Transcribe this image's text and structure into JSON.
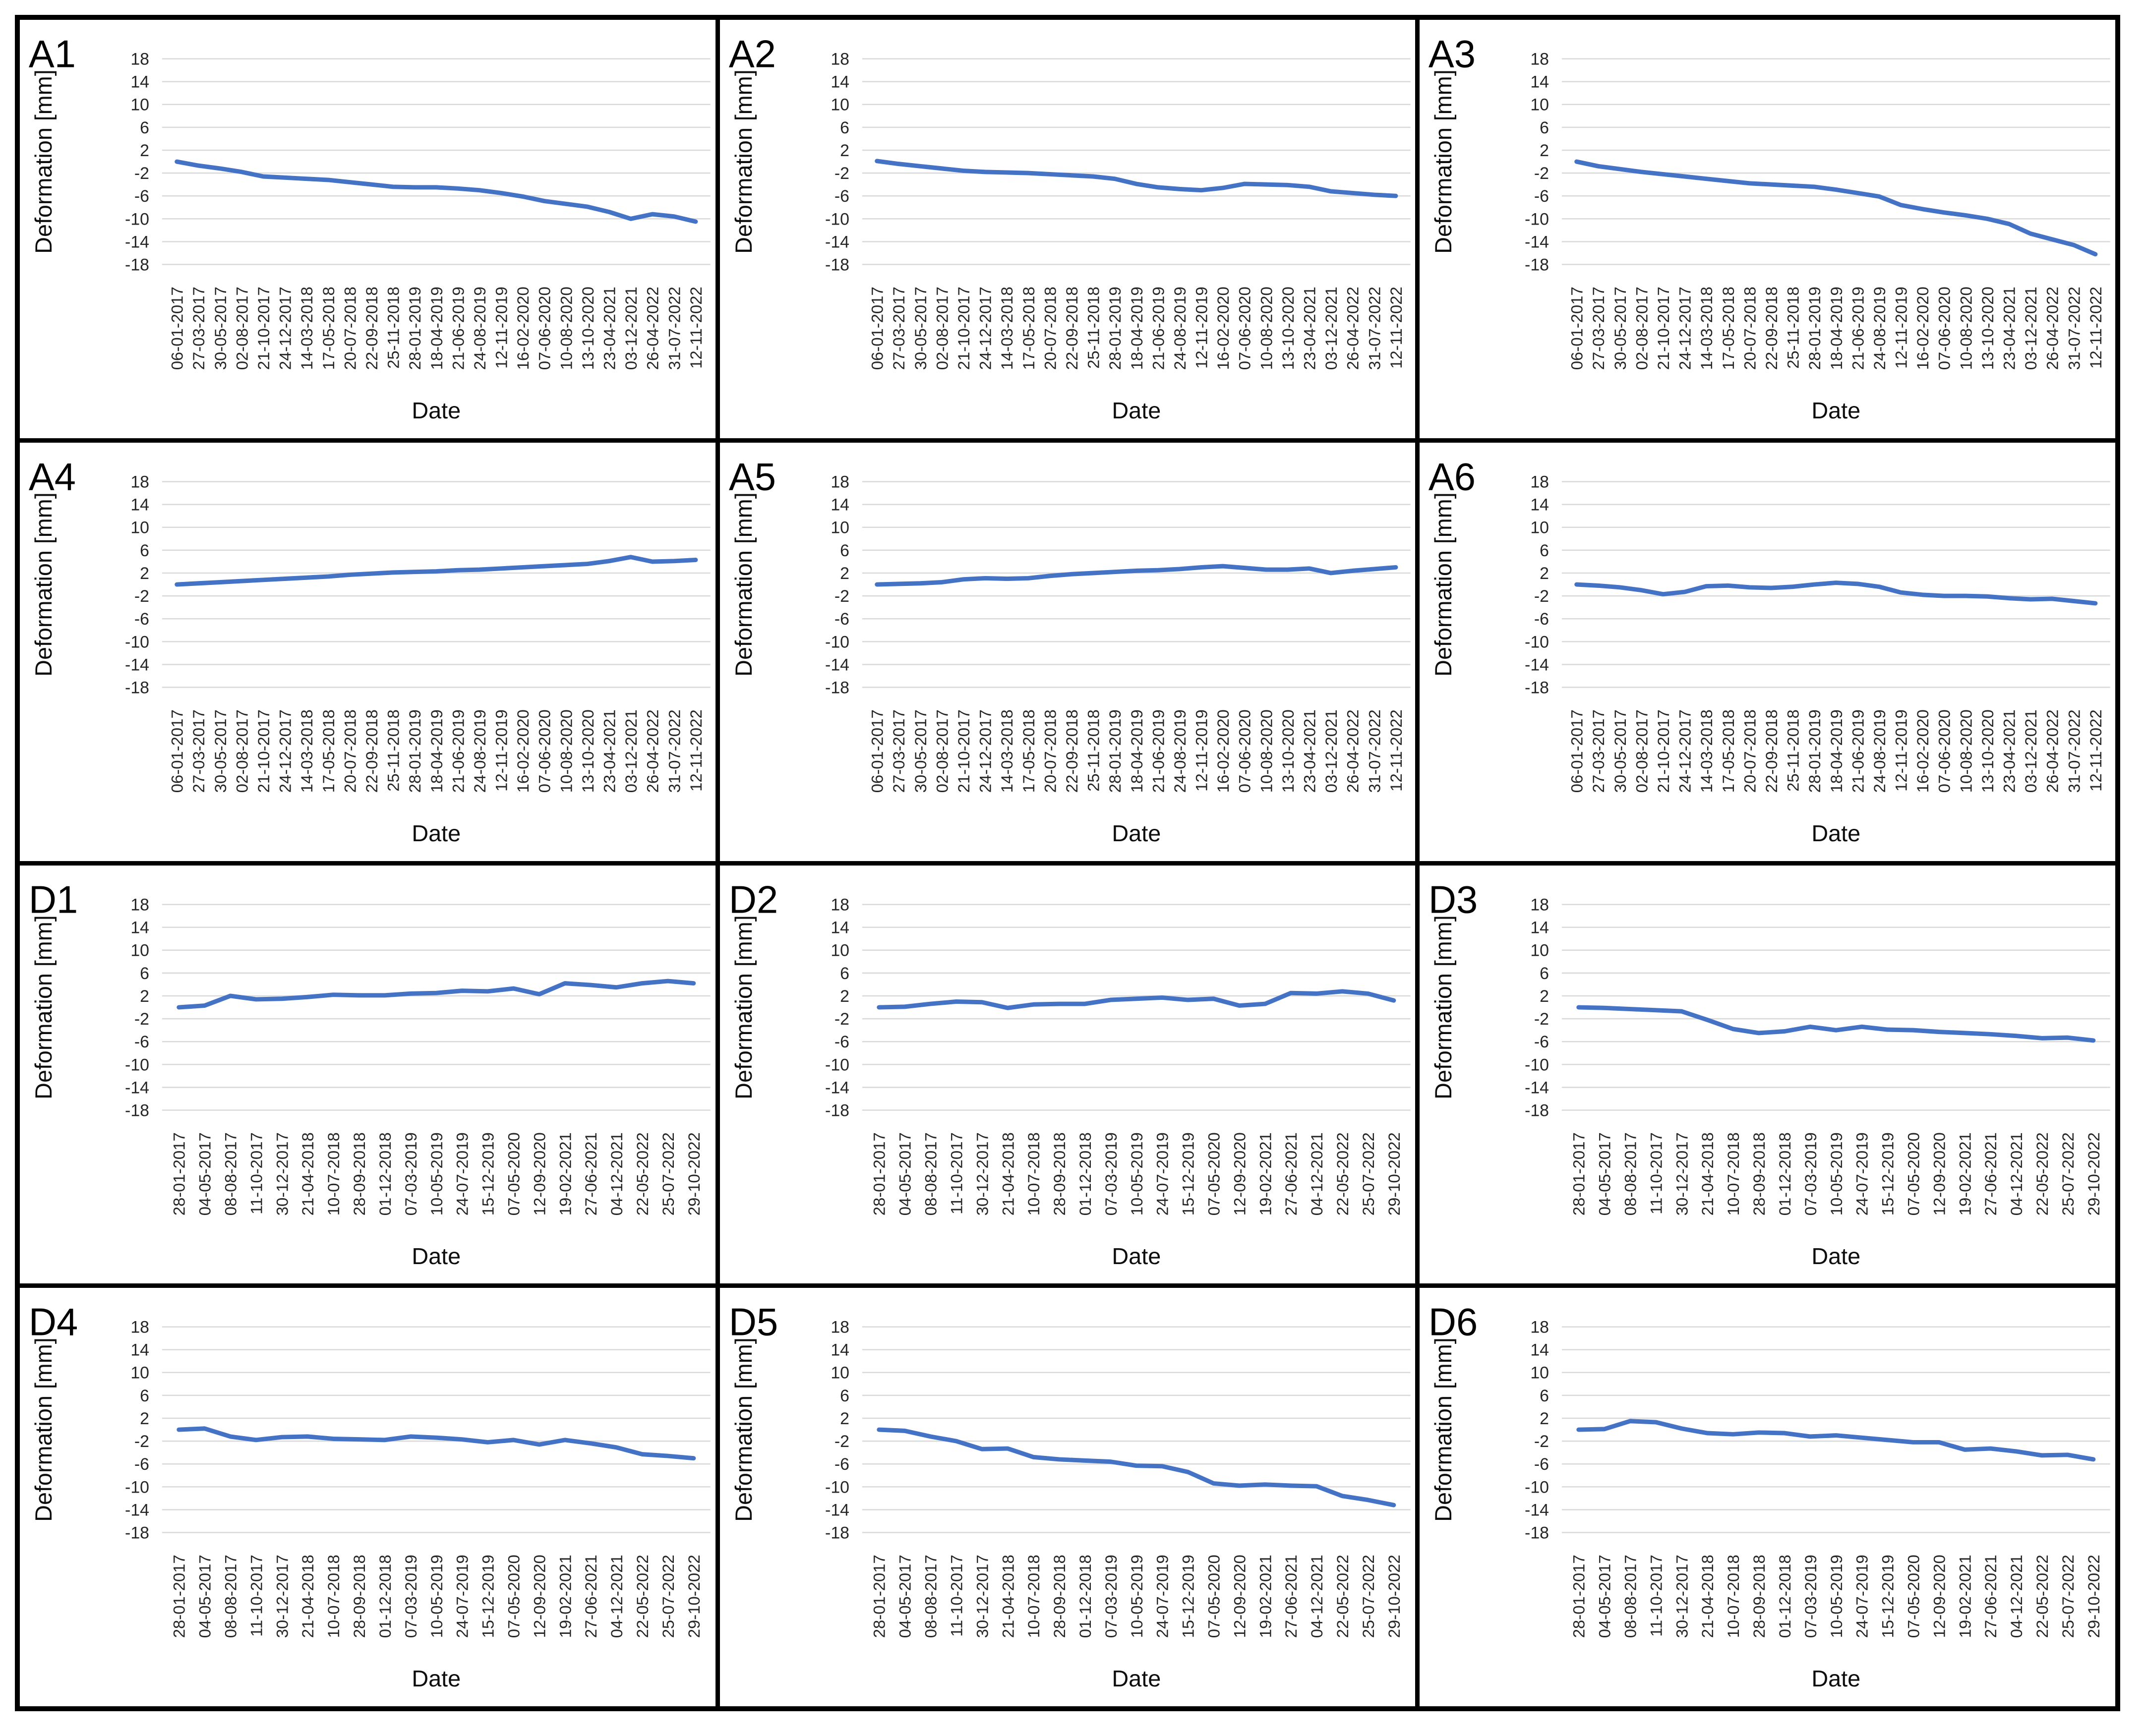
{
  "figure": {
    "line_color": "#4472C4",
    "grid_color": "#D9D9D9",
    "tick_text_color": "#262626",
    "border_color": "#000000",
    "background_color": "#FFFFFF"
  },
  "chart_data": {
    "type": "line",
    "title": "",
    "xlabel": "Date",
    "ylabel": "Deformation [mm]",
    "ylim": [
      -20.5,
      20.5
    ],
    "yticks": [
      18,
      14,
      10,
      6,
      2,
      -2,
      -6,
      -10,
      -14,
      -18
    ],
    "grid": true,
    "legend": false,
    "categories_A": [
      "06-01-2017",
      "27-03-2017",
      "30-05-2017",
      "02-08-2017",
      "21-10-2017",
      "24-12-2017",
      "14-03-2018",
      "17-05-2018",
      "20-07-2018",
      "22-09-2018",
      "25-11-2018",
      "28-01-2019",
      "18-04-2019",
      "21-06-2019",
      "24-08-2019",
      "12-11-2019",
      "16-02-2020",
      "07-06-2020",
      "10-08-2020",
      "13-10-2020",
      "23-04-2021",
      "03-12-2021",
      "26-04-2022",
      "31-07-2022",
      "12-11-2022"
    ],
    "categories_D": [
      "28-01-2017",
      "04-05-2017",
      "08-08-2017",
      "11-10-2017",
      "30-12-2017",
      "21-04-2018",
      "10-07-2018",
      "28-09-2018",
      "01-12-2018",
      "07-03-2019",
      "10-05-2019",
      "24-07-2019",
      "15-12-2019",
      "07-05-2020",
      "12-09-2020",
      "19-02-2021",
      "27-06-2021",
      "04-12-2021",
      "22-05-2022",
      "25-07-2022",
      "29-10-2022"
    ],
    "panels": [
      {
        "label": "A1",
        "category_set": "A",
        "values": [
          0,
          -0.7,
          -1.2,
          -1.8,
          -2.6,
          -2.8,
          -3.0,
          -3.2,
          -3.6,
          -4.0,
          -4.4,
          -4.5,
          -4.5,
          -4.7,
          -5.0,
          -5.5,
          -6.1,
          -6.9,
          -7.4,
          -7.9,
          -8.8,
          -10.0,
          -9.2,
          -9.6,
          -10.5
        ]
      },
      {
        "label": "A2",
        "category_set": "A",
        "values": [
          0.1,
          -0.4,
          -0.8,
          -1.2,
          -1.6,
          -1.8,
          -1.9,
          -2.0,
          -2.2,
          -2.4,
          -2.6,
          -3.0,
          -3.9,
          -4.5,
          -4.8,
          -5.0,
          -4.6,
          -3.9,
          -4.0,
          -4.1,
          -4.4,
          -5.2,
          -5.5,
          -5.8,
          -6.0
        ]
      },
      {
        "label": "A3",
        "category_set": "A",
        "values": [
          0,
          -0.8,
          -1.3,
          -1.8,
          -2.2,
          -2.6,
          -3.0,
          -3.4,
          -3.8,
          -4.0,
          -4.2,
          -4.4,
          -4.9,
          -5.5,
          -6.1,
          -7.6,
          -8.3,
          -8.9,
          -9.4,
          -10.0,
          -10.9,
          -12.6,
          -13.6,
          -14.6,
          -16.2
        ]
      },
      {
        "label": "A4",
        "category_set": "A",
        "values": [
          0,
          0.2,
          0.4,
          0.6,
          0.8,
          1.0,
          1.2,
          1.4,
          1.7,
          1.9,
          2.1,
          2.2,
          2.3,
          2.5,
          2.6,
          2.8,
          3.0,
          3.2,
          3.4,
          3.6,
          4.1,
          4.8,
          4.0,
          4.1,
          4.3
        ]
      },
      {
        "label": "A5",
        "category_set": "A",
        "values": [
          0,
          0.1,
          0.2,
          0.4,
          0.9,
          1.1,
          1.0,
          1.1,
          1.5,
          1.8,
          2.0,
          2.2,
          2.4,
          2.5,
          2.7,
          3.0,
          3.2,
          2.9,
          2.6,
          2.6,
          2.8,
          2.0,
          2.4,
          2.7,
          3.0
        ]
      },
      {
        "label": "A6",
        "category_set": "A",
        "values": [
          0,
          -0.2,
          -0.5,
          -1.0,
          -1.7,
          -1.3,
          -0.3,
          -0.2,
          -0.5,
          -0.6,
          -0.4,
          0.0,
          0.3,
          0.1,
          -0.4,
          -1.4,
          -1.8,
          -2.0,
          -2.0,
          -2.1,
          -2.4,
          -2.6,
          -2.5,
          -2.9,
          -3.3
        ]
      },
      {
        "label": "D1",
        "category_set": "D",
        "values": [
          0,
          0.3,
          2.0,
          1.4,
          1.5,
          1.8,
          2.2,
          2.1,
          2.1,
          2.4,
          2.5,
          2.9,
          2.8,
          3.3,
          2.3,
          4.2,
          3.9,
          3.5,
          4.2,
          4.6,
          4.2
        ]
      },
      {
        "label": "D2",
        "category_set": "D",
        "values": [
          0,
          0.1,
          0.6,
          1.0,
          0.9,
          -0.1,
          0.5,
          0.6,
          0.6,
          1.3,
          1.5,
          1.7,
          1.3,
          1.5,
          0.3,
          0.6,
          2.5,
          2.4,
          2.8,
          2.4,
          1.2
        ]
      },
      {
        "label": "D3",
        "category_set": "D",
        "values": [
          0,
          -0.1,
          -0.3,
          -0.5,
          -0.7,
          -2.2,
          -3.8,
          -4.5,
          -4.2,
          -3.4,
          -4.0,
          -3.4,
          -3.9,
          -4.0,
          -4.3,
          -4.5,
          -4.7,
          -5.0,
          -5.4,
          -5.3,
          -5.8
        ]
      },
      {
        "label": "D4",
        "category_set": "D",
        "values": [
          0,
          0.2,
          -1.2,
          -1.8,
          -1.3,
          -1.2,
          -1.6,
          -1.7,
          -1.8,
          -1.2,
          -1.4,
          -1.7,
          -2.2,
          -1.8,
          -2.6,
          -1.8,
          -2.4,
          -3.1,
          -4.3,
          -4.6,
          -5.0
        ]
      },
      {
        "label": "D5",
        "category_set": "D",
        "values": [
          0,
          -0.2,
          -1.2,
          -2.0,
          -3.4,
          -3.3,
          -4.8,
          -5.2,
          -5.4,
          -5.6,
          -6.3,
          -6.4,
          -7.4,
          -9.4,
          -9.8,
          -9.6,
          -9.8,
          -9.9,
          -11.6,
          -12.3,
          -13.2
        ]
      },
      {
        "label": "D6",
        "category_set": "D",
        "values": [
          0,
          0.1,
          1.5,
          1.3,
          0.2,
          -0.6,
          -0.8,
          -0.5,
          -0.6,
          -1.2,
          -1.0,
          -1.4,
          -1.8,
          -2.2,
          -2.2,
          -3.5,
          -3.3,
          -3.8,
          -4.5,
          -4.4,
          -5.2
        ]
      }
    ]
  }
}
